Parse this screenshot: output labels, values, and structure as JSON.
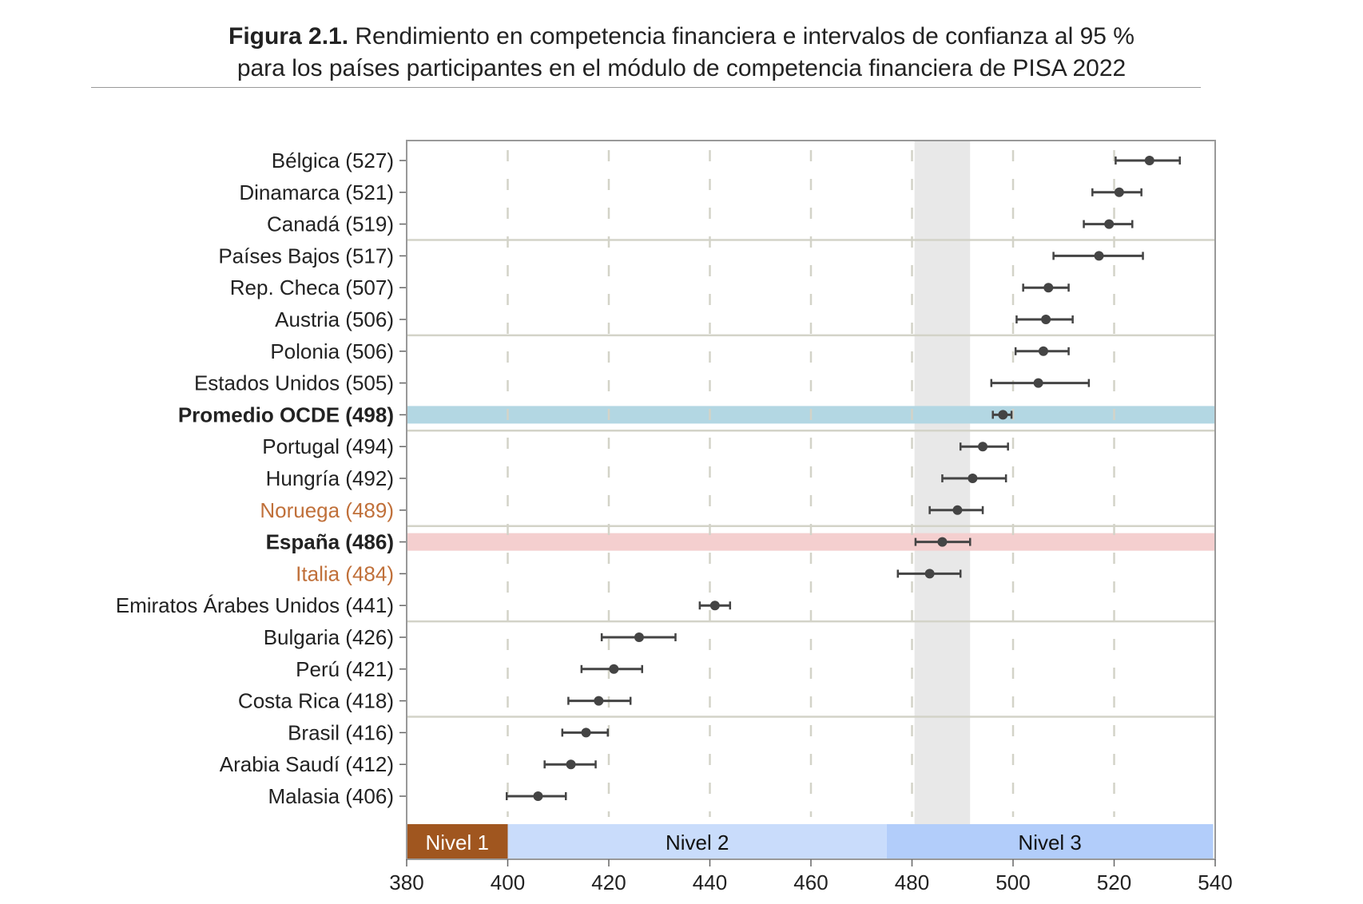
{
  "chart_data": {
    "type": "dot-errorbar",
    "title_bold": "Figura 2.1.",
    "title_line1": "Rendimiento en competencia financiera e intervalos de confianza al 95 %",
    "title_line2": "para los países participantes en el módulo de competencia financiera de PISA 2022",
    "xlim": [
      380,
      540
    ],
    "xticks": [
      380,
      400,
      420,
      440,
      460,
      480,
      500,
      520,
      540
    ],
    "grid": "vertical dashed",
    "shaded_band": [
      480.5,
      491.5
    ],
    "levels": [
      {
        "label": "Nivel 1",
        "from": 380,
        "to": 400,
        "color": "#a0561f",
        "text_color": "#ffffff"
      },
      {
        "label": "Nivel 2",
        "from": 400,
        "to": 475,
        "color": "#c9dcfb",
        "text_color": "#111111"
      },
      {
        "label": "Nivel 3",
        "from": 475,
        "to": 539.6,
        "color": "#b2cdfa",
        "text_color": "#111111"
      }
    ],
    "group_separators_after": [
      2,
      5,
      8,
      11,
      14,
      17
    ],
    "rows": [
      {
        "label": "Bélgica (527)",
        "mean": 527,
        "lo": 520.3,
        "hi": 533,
        "style": "normal"
      },
      {
        "label": "Dinamarca (521)",
        "mean": 521,
        "lo": 515.7,
        "hi": 525.4,
        "style": "normal"
      },
      {
        "label": "Canadá (519)",
        "mean": 519,
        "lo": 514,
        "hi": 523.6,
        "style": "normal"
      },
      {
        "label": "Países Bajos (517)",
        "mean": 517,
        "lo": 508,
        "hi": 525.7,
        "style": "normal"
      },
      {
        "label": "Rep. Checa (507)",
        "mean": 507,
        "lo": 502,
        "hi": 511,
        "style": "normal"
      },
      {
        "label": "Austria (506)",
        "mean": 506.5,
        "lo": 500.7,
        "hi": 511.8,
        "style": "normal"
      },
      {
        "label": "Polonia (506)",
        "mean": 506,
        "lo": 500.5,
        "hi": 511,
        "style": "normal"
      },
      {
        "label": "Estados Unidos (505)",
        "mean": 505,
        "lo": 495.7,
        "hi": 515,
        "style": "normal"
      },
      {
        "label": "Promedio OCDE (498)",
        "mean": 498,
        "lo": 496,
        "hi": 499.7,
        "style": "bold",
        "highlight": "#b3d7e3"
      },
      {
        "label": "Portugal (494)",
        "mean": 494,
        "lo": 489.6,
        "hi": 499,
        "style": "normal"
      },
      {
        "label": "Hungría (492)",
        "mean": 492,
        "lo": 486,
        "hi": 498.6,
        "style": "normal"
      },
      {
        "label": "Noruega (489)",
        "mean": 489,
        "lo": 483.5,
        "hi": 494,
        "style": "orange"
      },
      {
        "label": "España (486)",
        "mean": 486,
        "lo": 480.7,
        "hi": 491.5,
        "style": "bold",
        "highlight": "#f4cfcf"
      },
      {
        "label": "Italia (484)",
        "mean": 483.5,
        "lo": 477.2,
        "hi": 489.6,
        "style": "orange"
      },
      {
        "label": "Emiratos Árabes Unidos (441)",
        "mean": 441,
        "lo": 438,
        "hi": 444,
        "style": "normal"
      },
      {
        "label": "Bulgaria (426)",
        "mean": 426,
        "lo": 418.6,
        "hi": 433.2,
        "style": "normal"
      },
      {
        "label": "Perú (421)",
        "mean": 421,
        "lo": 414.6,
        "hi": 426.6,
        "style": "normal"
      },
      {
        "label": "Costa Rica (418)",
        "mean": 418,
        "lo": 412,
        "hi": 424.3,
        "style": "normal"
      },
      {
        "label": "Brasil (416)",
        "mean": 415.5,
        "lo": 410.8,
        "hi": 419.8,
        "style": "normal"
      },
      {
        "label": "Arabia Saudí (412)",
        "mean": 412.5,
        "lo": 407.3,
        "hi": 417.4,
        "style": "normal"
      },
      {
        "label": "Malasia (406)",
        "mean": 406,
        "lo": 399.8,
        "hi": 411.5,
        "style": "normal"
      }
    ],
    "colors": {
      "point": "#444444",
      "orange_label": "#c0703a",
      "grid": "#d3d3c8",
      "band": "#e8e8e8",
      "separator": "#d3d3c8"
    }
  }
}
